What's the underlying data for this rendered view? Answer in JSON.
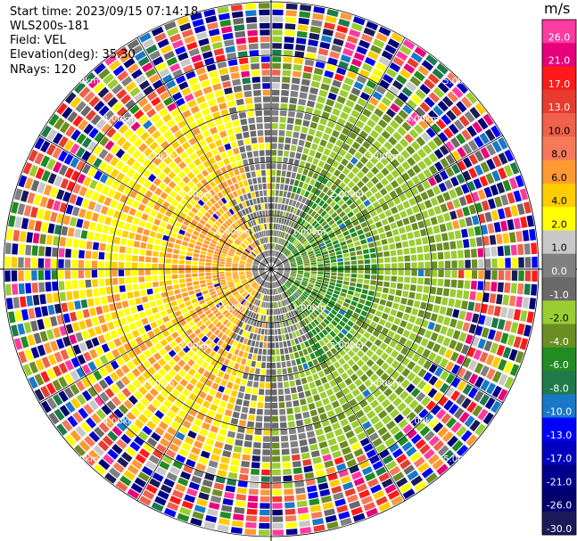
{
  "header": {
    "start_time": "Start time: 2023/09/15 07:14:18",
    "instrument": "WLS200s-181",
    "field": "Field: VEL",
    "elevation": "Elevation(deg): 35.30",
    "nrays": "NRays: 120"
  },
  "chart_data": {
    "type": "heatmap",
    "subtype": "polar-ppi",
    "field": "VEL",
    "unit": "m/s",
    "range_max_km": 5.0,
    "range_rings_km": [
      1.0,
      2.0,
      3.0,
      4.0,
      5.0
    ],
    "ring_labels": [
      "1.00km",
      "2.00km",
      "3.00km",
      "4.00km",
      "5.00km"
    ],
    "spokes_deg": [
      0,
      30,
      60,
      90,
      120,
      150,
      180,
      210,
      240,
      270,
      300,
      330
    ],
    "nrays": 120,
    "colorbar": {
      "label": "m/s",
      "ticks": [
        "26.0",
        "21.0",
        "17.0",
        "13.0",
        "10.0",
        "8.0",
        "6.0",
        "4.0",
        "2.0",
        "1.0",
        "0.0",
        "-1.0",
        "-2.0",
        "-4.0",
        "-6.0",
        "-8.0",
        "-10.0",
        "-13.0",
        "-17.0",
        "-21.0",
        "-26.0",
        "-30.0"
      ],
      "colors": [
        "#ff3aa0",
        "#e8007a",
        "#ff1a1a",
        "#e83c2e",
        "#f0604a",
        "#f57a5a",
        "#ff9933",
        "#ffcc00",
        "#ffff00",
        "#c8c8c8",
        "#808080",
        "#6a6a6a",
        "#9acd32",
        "#6b8e23",
        "#228b22",
        "#1e7a4a",
        "#1a78c8",
        "#0000ff",
        "#0000c0",
        "#00008b",
        "#000070",
        "#1a1a5a"
      ]
    },
    "pattern": {
      "near_field": "approaching (warm) on west half, receding (green) on east half, gray near center",
      "far_field": "noisy speckle of all colors beyond ~3.5 km"
    }
  }
}
